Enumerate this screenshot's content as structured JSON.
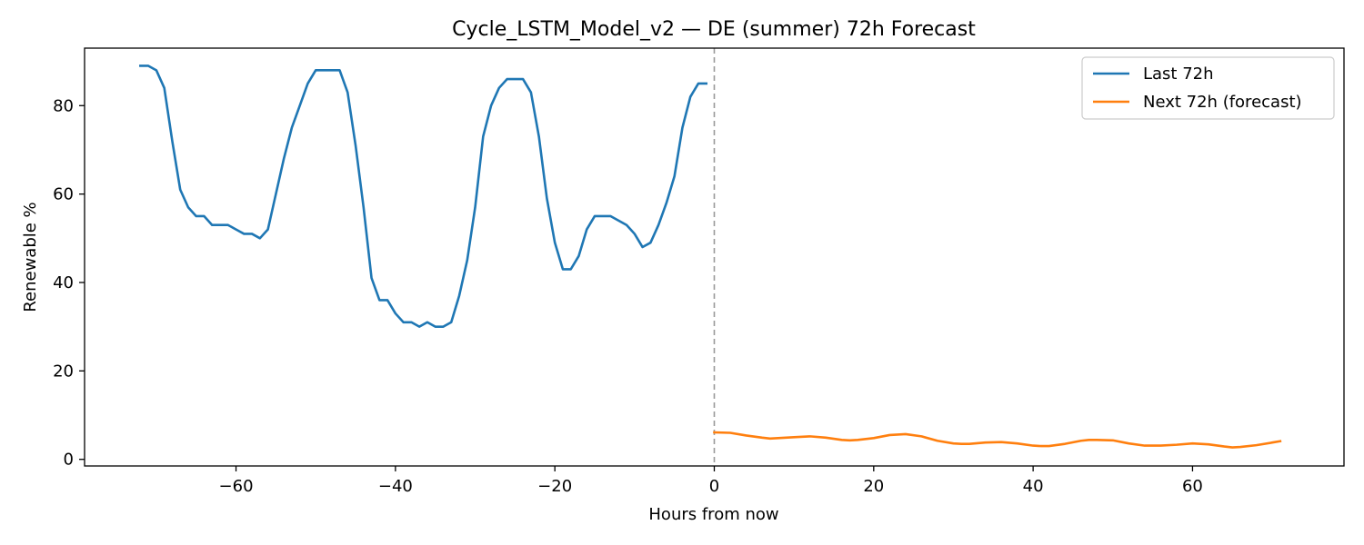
{
  "chart_data": {
    "type": "line",
    "title": "Cycle_LSTM_Model_v2 — DE (summer) 72h Forecast",
    "xlabel": "Hours from now",
    "ylabel": "Renewable %",
    "xlim": [
      -79,
      79
    ],
    "ylim": [
      -1.5,
      93
    ],
    "x_ticks": [
      -60,
      -40,
      -20,
      0,
      20,
      40,
      60
    ],
    "x_tick_labels": [
      "−60",
      "−40",
      "−20",
      "0",
      "20",
      "40",
      "60"
    ],
    "y_ticks": [
      0,
      20,
      40,
      60,
      80
    ],
    "y_tick_labels": [
      "0",
      "20",
      "40",
      "60",
      "80"
    ],
    "grid": false,
    "legend": "top-right",
    "vline": {
      "x": 0,
      "style": "dashed",
      "color": "#999999"
    },
    "series": [
      {
        "name": "Last 72h",
        "color": "#1f77b4",
        "x": [
          -72,
          -71,
          -70,
          -69,
          -68,
          -67,
          -66,
          -65,
          -64,
          -63,
          -62,
          -61,
          -60,
          -59,
          -58,
          -57,
          -56,
          -55,
          -54,
          -53,
          -52,
          -51,
          -50,
          -49,
          -48,
          -47,
          -46,
          -45,
          -44,
          -43,
          -42,
          -41,
          -40,
          -39,
          -38,
          -37,
          -36,
          -35,
          -34,
          -33,
          -32,
          -31,
          -30,
          -29,
          -28,
          -27,
          -26,
          -25,
          -24,
          -23,
          -22,
          -21,
          -20,
          -19,
          -18,
          -17,
          -16,
          -15,
          -14,
          -13,
          -12,
          -11,
          -10,
          -9,
          -8,
          -7,
          -6,
          -5,
          -4,
          -3,
          -2,
          -1
        ],
        "y": [
          89,
          89,
          88,
          84,
          72,
          61,
          57,
          55,
          55,
          53,
          53,
          53,
          52,
          51,
          51,
          50,
          52,
          60,
          68,
          75,
          80,
          85,
          88,
          88,
          88,
          88,
          83,
          71,
          57,
          41,
          36,
          36,
          33,
          31,
          31,
          30,
          31,
          30,
          30,
          31,
          37,
          45,
          57,
          73,
          80,
          84,
          86,
          86,
          86,
          83,
          73,
          59,
          49,
          43,
          43,
          46,
          52,
          55,
          55,
          55,
          54,
          53,
          51,
          48,
          49,
          53,
          58,
          64,
          75,
          82,
          85,
          85
        ]
      },
      {
        "name": "Next 72h (forecast)",
        "color": "#ff7f0e",
        "x": [
          0,
          2,
          4,
          6,
          7,
          8,
          10,
          12,
          14,
          16,
          17,
          18,
          20,
          22,
          24,
          26,
          28,
          30,
          31,
          32,
          34,
          36,
          38,
          40,
          41,
          42,
          44,
          46,
          47,
          48,
          50,
          52,
          54,
          56,
          58,
          60,
          62,
          64,
          65,
          66,
          68,
          70,
          71
        ],
        "y": [
          6.1,
          6.0,
          5.4,
          4.9,
          4.7,
          4.8,
          5.0,
          5.2,
          4.9,
          4.4,
          4.3,
          4.4,
          4.8,
          5.5,
          5.7,
          5.2,
          4.2,
          3.6,
          3.5,
          3.5,
          3.8,
          3.9,
          3.6,
          3.1,
          3.0,
          3.0,
          3.5,
          4.2,
          4.4,
          4.4,
          4.3,
          3.6,
          3.1,
          3.1,
          3.3,
          3.6,
          3.4,
          2.9,
          2.7,
          2.8,
          3.2,
          3.8,
          4.1
        ]
      }
    ]
  }
}
